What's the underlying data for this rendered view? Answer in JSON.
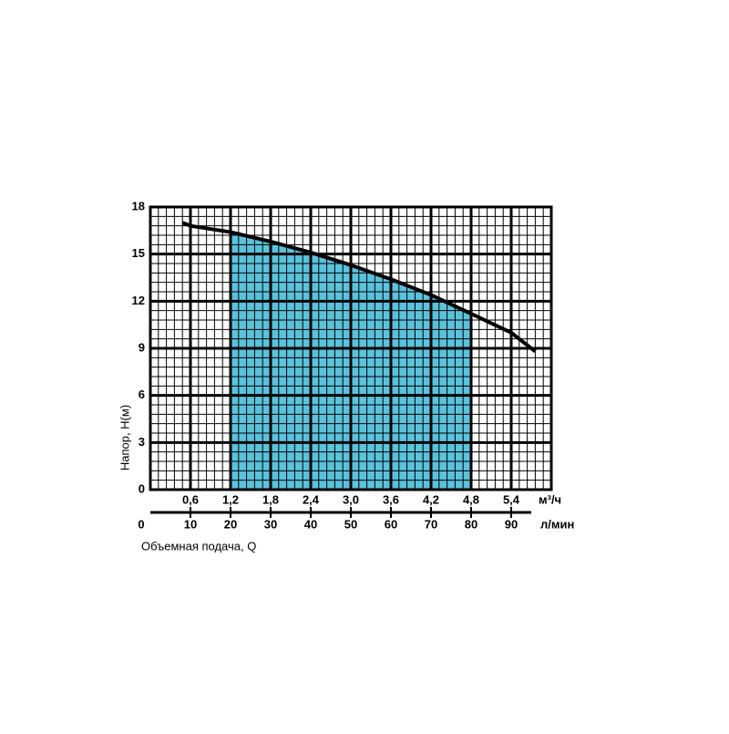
{
  "chart_data": {
    "type": "line",
    "y_label": "Напор, H(м)",
    "x_label": "Объемная подача, Q",
    "x_unit": "л/мин",
    "x2_unit": "м³/ч",
    "x": [
      8,
      10,
      20,
      30,
      40,
      50,
      60,
      70,
      80,
      90,
      96
    ],
    "series": [
      {
        "color": "#000000",
        "values": [
          17.0,
          16.8,
          16.4,
          15.8,
          15.1,
          14.3,
          13.4,
          12.4,
          11.2,
          10.0,
          8.8
        ]
      }
    ],
    "fill_range": [
      20,
      80
    ],
    "fill_color": "#5bc2dc",
    "xlim": [
      0,
      100
    ],
    "xticks": [
      0,
      10,
      20,
      30,
      40,
      50,
      60,
      70,
      80,
      90
    ],
    "x2lim": [
      0,
      6
    ],
    "x2ticks": [
      {
        "value": 0.6,
        "label": "0,6"
      },
      {
        "value": 1.2,
        "label": "1,2"
      },
      {
        "value": 1.8,
        "label": "1,8"
      },
      {
        "value": 2.4,
        "label": "2,4"
      },
      {
        "value": 3.0,
        "label": "3,0"
      },
      {
        "value": 3.6,
        "label": "3,6"
      },
      {
        "value": 4.2,
        "label": "4,2"
      },
      {
        "value": 4.8,
        "label": "4,8"
      },
      {
        "value": 5.4,
        "label": "5,4"
      }
    ],
    "ylim": [
      0,
      18
    ],
    "yticks": [
      0,
      3,
      6,
      9,
      12,
      15,
      18
    ],
    "x_minor_step": 2,
    "y_minor_step": 0.6,
    "grid": true
  }
}
